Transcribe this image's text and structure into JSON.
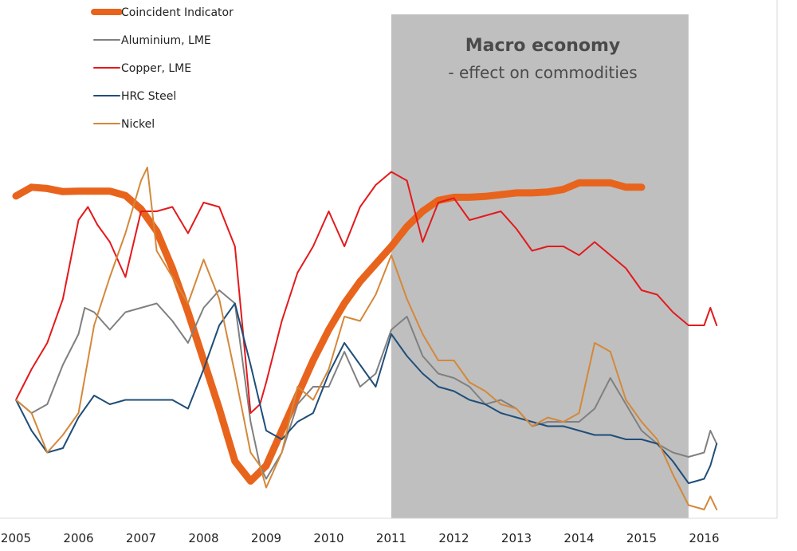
{
  "chart_data": {
    "type": "line",
    "x_ticks": [
      "2005",
      "2006",
      "2007",
      "2008",
      "2009",
      "2010",
      "2011",
      "2012",
      "2013",
      "2014",
      "2015",
      "2016"
    ],
    "xlim": [
      2005,
      2016.8
    ],
    "ylim": [
      0,
      100
    ],
    "grid": false,
    "legend_position": "top-left",
    "annotation": {
      "title": "Macro economy",
      "subtitle": "- effect on commodities",
      "shaded_range": [
        2011.0,
        2015.75
      ],
      "shade_color": "#bfbfbf"
    },
    "series": [
      {
        "name": "Coincident Indicator",
        "color": "#e8641c",
        "values": [
          [
            2005.0,
            73.5
          ],
          [
            2005.25,
            75.5
          ],
          [
            2005.5,
            75.2
          ],
          [
            2005.75,
            74.5
          ],
          [
            2006.0,
            74.6
          ],
          [
            2006.25,
            74.6
          ],
          [
            2006.5,
            74.6
          ],
          [
            2006.75,
            73.6
          ],
          [
            2007.0,
            70.5
          ],
          [
            2007.25,
            65.5
          ],
          [
            2007.5,
            57
          ],
          [
            2007.75,
            47
          ],
          [
            2008.0,
            36
          ],
          [
            2008.25,
            25
          ],
          [
            2008.5,
            13
          ],
          [
            2008.75,
            8.5
          ],
          [
            2009.0,
            12
          ],
          [
            2009.25,
            20
          ],
          [
            2009.5,
            28
          ],
          [
            2009.75,
            36
          ],
          [
            2010.0,
            43
          ],
          [
            2010.25,
            49
          ],
          [
            2010.5,
            54
          ],
          [
            2010.75,
            58
          ],
          [
            2011.0,
            62
          ],
          [
            2011.25,
            66.5
          ],
          [
            2011.5,
            70
          ],
          [
            2011.75,
            72.5
          ],
          [
            2012.0,
            73.2
          ],
          [
            2012.25,
            73.2
          ],
          [
            2012.5,
            73.4
          ],
          [
            2012.75,
            73.8
          ],
          [
            2013.0,
            74.2
          ],
          [
            2013.25,
            74.2
          ],
          [
            2013.5,
            74.4
          ],
          [
            2013.75,
            75
          ],
          [
            2014.0,
            76.5
          ],
          [
            2014.25,
            76.5
          ],
          [
            2014.5,
            76.5
          ],
          [
            2014.75,
            75.5
          ],
          [
            2015.0,
            75.5
          ]
        ]
      },
      {
        "name": "Aluminium, LME",
        "color": "#808080",
        "values": [
          [
            2005.0,
            27
          ],
          [
            2005.25,
            24
          ],
          [
            2005.5,
            26
          ],
          [
            2005.75,
            35
          ],
          [
            2006.0,
            42
          ],
          [
            2006.1,
            48
          ],
          [
            2006.25,
            47
          ],
          [
            2006.5,
            43
          ],
          [
            2006.75,
            47
          ],
          [
            2007.0,
            48
          ],
          [
            2007.25,
            49
          ],
          [
            2007.5,
            45
          ],
          [
            2007.75,
            40
          ],
          [
            2008.0,
            48
          ],
          [
            2008.25,
            52
          ],
          [
            2008.5,
            49
          ],
          [
            2008.75,
            22
          ],
          [
            2008.9,
            12
          ],
          [
            2009.0,
            9
          ],
          [
            2009.25,
            15
          ],
          [
            2009.5,
            26
          ],
          [
            2009.75,
            30
          ],
          [
            2010.0,
            30
          ],
          [
            2010.25,
            38
          ],
          [
            2010.5,
            30
          ],
          [
            2010.75,
            33
          ],
          [
            2011.0,
            43
          ],
          [
            2011.25,
            46
          ],
          [
            2011.5,
            37
          ],
          [
            2011.75,
            33
          ],
          [
            2012.0,
            32
          ],
          [
            2012.25,
            30
          ],
          [
            2012.5,
            26
          ],
          [
            2012.75,
            27
          ],
          [
            2013.0,
            25
          ],
          [
            2013.25,
            21
          ],
          [
            2013.5,
            22
          ],
          [
            2013.75,
            22
          ],
          [
            2014.0,
            22
          ],
          [
            2014.25,
            25
          ],
          [
            2014.5,
            32
          ],
          [
            2014.75,
            26
          ],
          [
            2015.0,
            20
          ],
          [
            2015.25,
            17
          ],
          [
            2015.5,
            15
          ],
          [
            2015.75,
            14
          ],
          [
            2016.0,
            15
          ],
          [
            2016.1,
            20
          ],
          [
            2016.2,
            17
          ]
        ]
      },
      {
        "name": "Copper, LME",
        "color": "#e31a1c",
        "values": [
          [
            2005.0,
            27
          ],
          [
            2005.25,
            34
          ],
          [
            2005.5,
            40
          ],
          [
            2005.75,
            50
          ],
          [
            2006.0,
            68
          ],
          [
            2006.15,
            71
          ],
          [
            2006.3,
            67
          ],
          [
            2006.5,
            63
          ],
          [
            2006.75,
            55
          ],
          [
            2007.0,
            70
          ],
          [
            2007.25,
            70
          ],
          [
            2007.5,
            71
          ],
          [
            2007.75,
            65
          ],
          [
            2008.0,
            72
          ],
          [
            2008.25,
            71
          ],
          [
            2008.5,
            62
          ],
          [
            2008.75,
            24
          ],
          [
            2008.9,
            26
          ],
          [
            2009.0,
            31
          ],
          [
            2009.25,
            45
          ],
          [
            2009.5,
            56
          ],
          [
            2009.75,
            62
          ],
          [
            2010.0,
            70
          ],
          [
            2010.25,
            62
          ],
          [
            2010.5,
            71
          ],
          [
            2010.75,
            76
          ],
          [
            2011.0,
            79
          ],
          [
            2011.25,
            77
          ],
          [
            2011.5,
            63
          ],
          [
            2011.75,
            72
          ],
          [
            2012.0,
            73
          ],
          [
            2012.25,
            68
          ],
          [
            2012.5,
            69
          ],
          [
            2012.75,
            70
          ],
          [
            2013.0,
            66
          ],
          [
            2013.25,
            61
          ],
          [
            2013.5,
            62
          ],
          [
            2013.75,
            62
          ],
          [
            2014.0,
            60
          ],
          [
            2014.25,
            63
          ],
          [
            2014.5,
            60
          ],
          [
            2014.75,
            57
          ],
          [
            2015.0,
            52
          ],
          [
            2015.25,
            51
          ],
          [
            2015.5,
            47
          ],
          [
            2015.75,
            44
          ],
          [
            2016.0,
            44
          ],
          [
            2016.1,
            48
          ],
          [
            2016.2,
            44
          ]
        ]
      },
      {
        "name": "HRC Steel",
        "color": "#1f4e79",
        "values": [
          [
            2005.0,
            27
          ],
          [
            2005.25,
            20
          ],
          [
            2005.5,
            15
          ],
          [
            2005.75,
            16
          ],
          [
            2006.0,
            23
          ],
          [
            2006.25,
            28
          ],
          [
            2006.5,
            26
          ],
          [
            2006.75,
            27
          ],
          [
            2007.0,
            27
          ],
          [
            2007.25,
            27
          ],
          [
            2007.5,
            27
          ],
          [
            2007.75,
            25
          ],
          [
            2008.0,
            34
          ],
          [
            2008.25,
            44
          ],
          [
            2008.5,
            49
          ],
          [
            2008.75,
            35
          ],
          [
            2009.0,
            20
          ],
          [
            2009.25,
            18
          ],
          [
            2009.5,
            22
          ],
          [
            2009.75,
            24
          ],
          [
            2010.0,
            33
          ],
          [
            2010.25,
            40
          ],
          [
            2010.5,
            35
          ],
          [
            2010.75,
            30
          ],
          [
            2011.0,
            42
          ],
          [
            2011.25,
            37
          ],
          [
            2011.5,
            33
          ],
          [
            2011.75,
            30
          ],
          [
            2012.0,
            29
          ],
          [
            2012.25,
            27
          ],
          [
            2012.5,
            26
          ],
          [
            2012.75,
            24
          ],
          [
            2013.0,
            23
          ],
          [
            2013.25,
            22
          ],
          [
            2013.5,
            21
          ],
          [
            2013.75,
            21
          ],
          [
            2014.0,
            20
          ],
          [
            2014.25,
            19
          ],
          [
            2014.5,
            19
          ],
          [
            2014.75,
            18
          ],
          [
            2015.0,
            18
          ],
          [
            2015.25,
            17
          ],
          [
            2015.5,
            13
          ],
          [
            2015.75,
            8
          ],
          [
            2016.0,
            9
          ],
          [
            2016.1,
            12
          ],
          [
            2016.2,
            17
          ]
        ]
      },
      {
        "name": "Nickel",
        "color": "#d4883a",
        "values": [
          [
            2005.0,
            27
          ],
          [
            2005.25,
            24
          ],
          [
            2005.5,
            15
          ],
          [
            2005.75,
            19
          ],
          [
            2006.0,
            24
          ],
          [
            2006.25,
            44
          ],
          [
            2006.5,
            55
          ],
          [
            2006.75,
            65
          ],
          [
            2007.0,
            77
          ],
          [
            2007.1,
            80
          ],
          [
            2007.25,
            61
          ],
          [
            2007.5,
            55
          ],
          [
            2007.75,
            49
          ],
          [
            2008.0,
            59
          ],
          [
            2008.25,
            50
          ],
          [
            2008.5,
            33
          ],
          [
            2008.75,
            15
          ],
          [
            2008.9,
            12
          ],
          [
            2009.0,
            7
          ],
          [
            2009.25,
            15
          ],
          [
            2009.5,
            30
          ],
          [
            2009.75,
            27
          ],
          [
            2010.0,
            34
          ],
          [
            2010.25,
            46
          ],
          [
            2010.5,
            45
          ],
          [
            2010.75,
            51
          ],
          [
            2011.0,
            60
          ],
          [
            2011.25,
            50
          ],
          [
            2011.5,
            42
          ],
          [
            2011.75,
            36
          ],
          [
            2012.0,
            36
          ],
          [
            2012.25,
            31
          ],
          [
            2012.5,
            29
          ],
          [
            2012.75,
            26
          ],
          [
            2013.0,
            25
          ],
          [
            2013.25,
            21
          ],
          [
            2013.5,
            23
          ],
          [
            2013.75,
            22
          ],
          [
            2014.0,
            24
          ],
          [
            2014.25,
            40
          ],
          [
            2014.5,
            38
          ],
          [
            2014.75,
            27
          ],
          [
            2015.0,
            22
          ],
          [
            2015.25,
            18
          ],
          [
            2015.5,
            10
          ],
          [
            2015.75,
            3
          ],
          [
            2016.0,
            2
          ],
          [
            2016.1,
            5
          ],
          [
            2016.2,
            2
          ]
        ]
      }
    ]
  }
}
